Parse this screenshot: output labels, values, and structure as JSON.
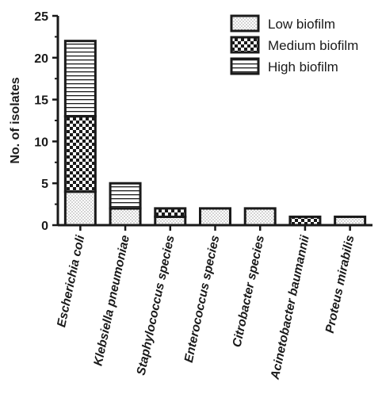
{
  "chart_data": {
    "type": "bar",
    "stacked": true,
    "categories": [
      "Escherichia coli",
      "Klebsiella pneumoniae",
      "Staphylococcus species",
      "Enterococcus species",
      "Citrobacter species",
      "Acinetobacter baumannii",
      "Proteus mirabilis"
    ],
    "series": [
      {
        "name": "Low biofilm",
        "pattern": "dots",
        "values": [
          4,
          2,
          1,
          2,
          2,
          0,
          1
        ]
      },
      {
        "name": "Medium biofilm",
        "pattern": "checker",
        "values": [
          9,
          0,
          1,
          0,
          0,
          1,
          0
        ]
      },
      {
        "name": "High biofilm",
        "pattern": "horizontal-lines",
        "values": [
          9,
          3,
          0,
          0,
          0,
          0,
          0
        ]
      }
    ],
    "title": "",
    "xlabel": "",
    "ylabel": "No. of isolates",
    "ylim": [
      0,
      25
    ],
    "yticks": [
      "0",
      "5",
      "10",
      "15",
      "20",
      "25"
    ],
    "grid": false,
    "legend_position": "top-right",
    "colors": {
      "stroke": "#1a1a1a",
      "fill": "#ffffff"
    }
  }
}
